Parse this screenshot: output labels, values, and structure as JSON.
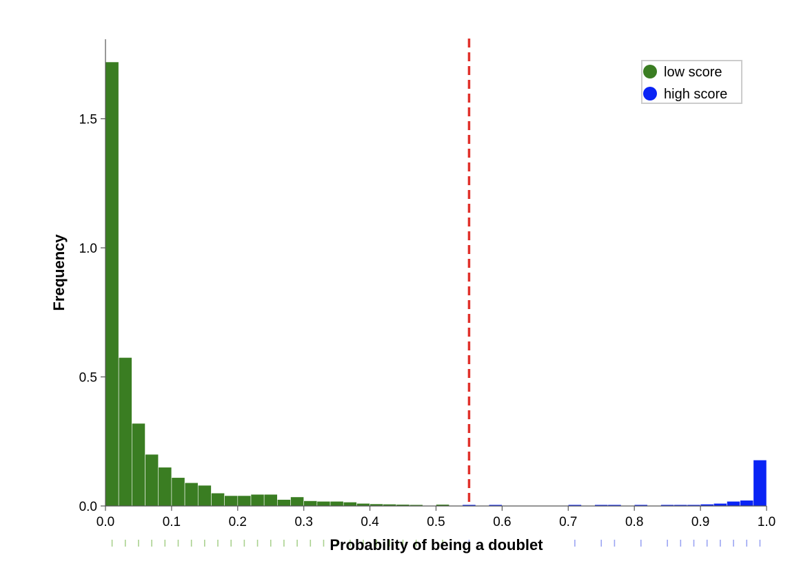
{
  "chart_data": {
    "type": "bar",
    "xlabel": "Probability of being a doublet",
    "ylabel": "Frequency",
    "xlim": [
      0.0,
      1.0
    ],
    "ylim": [
      0.0,
      1.8
    ],
    "bin_width": 0.02,
    "x_ticks": [
      "0.0",
      "0.1",
      "0.2",
      "0.3",
      "0.4",
      "0.5",
      "0.6",
      "0.7",
      "0.8",
      "0.9",
      "1.0"
    ],
    "y_ticks": [
      "0.0",
      "0.5",
      "1.0",
      "1.5"
    ],
    "threshold": 0.55,
    "legend": {
      "position": "top-right"
    },
    "series": [
      {
        "name": "low score",
        "color": "#3a7d22",
        "x": [
          0.0,
          0.02,
          0.04,
          0.06,
          0.08,
          0.1,
          0.12,
          0.14,
          0.16,
          0.18,
          0.2,
          0.22,
          0.24,
          0.26,
          0.28,
          0.3,
          0.32,
          0.34,
          0.36,
          0.38,
          0.4,
          0.42,
          0.44,
          0.46,
          0.5
        ],
        "values": [
          1.72,
          0.575,
          0.32,
          0.2,
          0.15,
          0.11,
          0.09,
          0.08,
          0.05,
          0.04,
          0.04,
          0.045,
          0.045,
          0.025,
          0.035,
          0.02,
          0.018,
          0.018,
          0.015,
          0.01,
          0.008,
          0.007,
          0.006,
          0.005,
          0.006
        ]
      },
      {
        "name": "high score",
        "color": "#0a24f5",
        "x": [
          0.54,
          0.58,
          0.7,
          0.74,
          0.76,
          0.8,
          0.84,
          0.86,
          0.88,
          0.9,
          0.92,
          0.94,
          0.96,
          0.98
        ],
        "values": [
          0.005,
          0.005,
          0.005,
          0.005,
          0.005,
          0.005,
          0.005,
          0.005,
          0.005,
          0.007,
          0.01,
          0.018,
          0.022,
          0.178
        ]
      }
    ]
  }
}
